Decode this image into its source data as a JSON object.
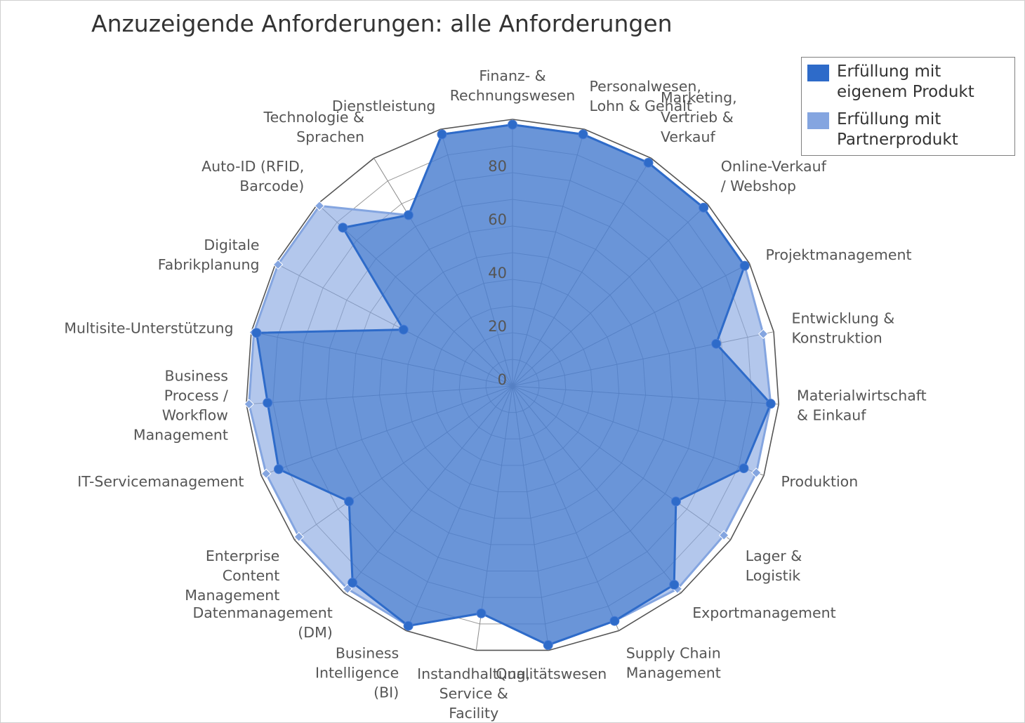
{
  "title": "Anzuzeigende Anforderungen: alle Anforderungen",
  "legend": {
    "items": [
      {
        "label": "Erfüllung mit\neigenem Produkt",
        "color": "#2e6bc9"
      },
      {
        "label": "Erfüllung mit\nPartnerprodukt",
        "color": "#84a5e0"
      }
    ]
  },
  "chart_data": {
    "type": "radar",
    "title": "Anzuzeigende Anforderungen: alle Anforderungen",
    "categories": [
      "Finanz- &\nRechnungswesen",
      "Personalwesen,\nLohn & Gehalt",
      "Marketing,\nVertrieb &\nVerkauf",
      "Online-Verkauf\n/ Webshop",
      "Projektmanagement",
      "Entwicklung &\nKonstruktion",
      "Materialwirtschaft\n& Einkauf",
      "Produktion",
      "Lager &\nLogistik",
      "Exportmanagement",
      "Supply Chain\nManagement",
      "Qualitätswesen",
      "Instandhaltung,\nService &\nFacility\nManagement",
      "Business\nIntelligence\n(BI)",
      "Datenmanagement\n(DM)",
      "Enterprise\nContent\nManagement",
      "IT-Servicemanagement",
      "Business\nProcess /\nWorkflow\nManagement",
      "Multisite-Unterstützung",
      "Digitale\nFabrikplanung",
      "Auto-ID (RFID,\nBarcode)",
      "Technologie &\nSprachen",
      "Dienstleistung"
    ],
    "series": [
      {
        "name": "Erfüllung mit eigenem Produkt",
        "color": "#2e6bc9",
        "values": [
          98,
          98,
          98,
          98,
          98,
          78,
          97,
          92,
          75,
          96,
          96,
          98,
          86,
          98,
          95,
          75,
          93,
          92,
          98,
          46,
          87,
          75,
          98
        ]
      },
      {
        "name": "Erfüllung mit Partnerprodukt",
        "color": "#84a5e0",
        "values": [
          98,
          98,
          98,
          98,
          98,
          96,
          97,
          97,
          97,
          98,
          96,
          98,
          86,
          98,
          98,
          98,
          98,
          99,
          99,
          99,
          99,
          75,
          98
        ]
      }
    ],
    "rlim": [
      0,
      100
    ],
    "r_ticks": [
      0,
      20,
      40,
      60,
      80
    ],
    "grid": true,
    "legend_position": "top-right"
  }
}
